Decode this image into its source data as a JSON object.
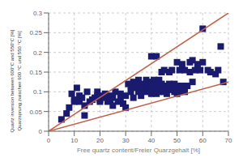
{
  "chart_data": {
    "type": "scatter",
    "xlabel": "Free quartz content/Freier Quarzgehalt [%]",
    "ylabel": [
      "Quartz inversion between 600°C and 550°C [%]",
      "Quarzsprung zwischen 600 °C und 550 °C [%]"
    ],
    "xlim": [
      0,
      70
    ],
    "ylim": [
      0,
      0.3
    ],
    "xticks": [
      0,
      10,
      20,
      30,
      40,
      50,
      60,
      70
    ],
    "yticks": [
      0,
      0.05,
      0.1,
      0.15,
      0.2,
      0.25,
      0.3
    ],
    "grid": true,
    "series": [
      {
        "type": "scatter",
        "marker": "square",
        "color": "#1a1a6e",
        "x": [
          5,
          7,
          8,
          9,
          10,
          10,
          11,
          12,
          12,
          13,
          14,
          14,
          15,
          16,
          17,
          18,
          19,
          19,
          20,
          20,
          20,
          21,
          22,
          22,
          23,
          24,
          24,
          25,
          25,
          26,
          27,
          28,
          28,
          29,
          30,
          30,
          31,
          32,
          32,
          33,
          33,
          34,
          35,
          35,
          35,
          36,
          36,
          37,
          37,
          38,
          38,
          38,
          39,
          39,
          40,
          40,
          40,
          40,
          40,
          41,
          41,
          41,
          41,
          42,
          42,
          42,
          42,
          43,
          43,
          43,
          44,
          44,
          44,
          45,
          45,
          45,
          46,
          46,
          47,
          47,
          48,
          48,
          48,
          49,
          49,
          50,
          50,
          50,
          51,
          51,
          52,
          52,
          53,
          53,
          54,
          55,
          55,
          56,
          56,
          57,
          58,
          59,
          60,
          60,
          62,
          63,
          65,
          66,
          67,
          68
        ],
        "values": [
          0.03,
          0.045,
          0.06,
          0.095,
          0.075,
          0.08,
          0.11,
          0.075,
          0.09,
          0.085,
          0.04,
          0.065,
          0.1,
          0.075,
          0.08,
          0.085,
          0.09,
          0.1,
          0.075,
          0.08,
          0.085,
          0.09,
          0.095,
          0.085,
          0.075,
          0.08,
          0.09,
          0.065,
          0.085,
          0.1,
          0.075,
          0.08,
          0.095,
          0.07,
          0.06,
          0.09,
          0.12,
          0.1,
          0.115,
          0.085,
          0.125,
          0.11,
          0.1,
          0.12,
          0.13,
          0.09,
          0.115,
          0.105,
          0.12,
          0.1,
          0.115,
          0.13,
          0.105,
          0.12,
          0.095,
          0.1,
          0.115,
          0.125,
          0.19,
          0.1,
          0.105,
          0.115,
          0.13,
          0.095,
          0.1,
          0.11,
          0.19,
          0.1,
          0.115,
          0.13,
          0.105,
          0.12,
          0.15,
          0.1,
          0.115,
          0.155,
          0.095,
          0.11,
          0.12,
          0.15,
          0.105,
          0.115,
          0.155,
          0.1,
          0.12,
          0.095,
          0.115,
          0.175,
          0.1,
          0.155,
          0.115,
          0.17,
          0.1,
          0.155,
          0.115,
          0.15,
          0.175,
          0.125,
          0.18,
          0.155,
          0.17,
          0.155,
          0.26,
          0.175,
          0.155,
          0.15,
          0.145,
          0.155,
          0.215,
          0.125
        ]
      },
      {
        "type": "line",
        "color": "#c0614a",
        "x": [
          0,
          70
        ],
        "values": [
          0,
          0.3
        ]
      },
      {
        "type": "line",
        "color": "#c0614a",
        "x": [
          0,
          70
        ],
        "values": [
          0.0,
          0.125
        ]
      }
    ]
  }
}
